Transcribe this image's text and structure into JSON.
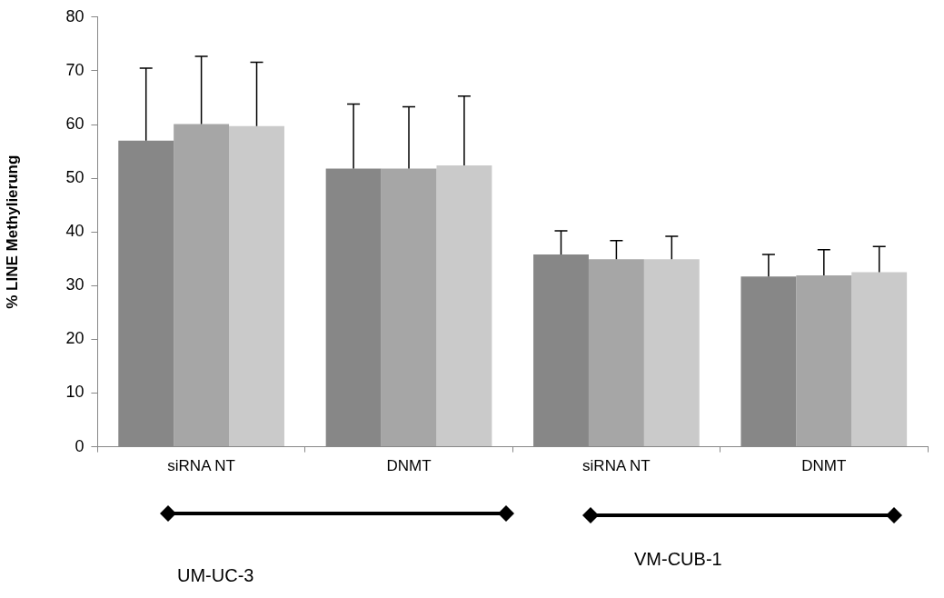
{
  "chart_data": {
    "type": "bar",
    "ylabel": "% LINE Methylierung",
    "categories": [
      "siRNA NT",
      "DNMT",
      "siRNA NT",
      "DNMT"
    ],
    "series": [
      {
        "color": "#878787",
        "values": [
          57.0,
          51.8,
          35.8,
          31.7
        ],
        "errors": [
          [
            57.0,
            70.5
          ],
          [
            51.8,
            63.8
          ],
          [
            35.8,
            40.2
          ],
          [
            31.7,
            35.8
          ]
        ]
      },
      {
        "color": "#a6a6a6",
        "values": [
          60.1,
          51.8,
          34.9,
          31.9
        ],
        "errors": [
          [
            60.1,
            72.7
          ],
          [
            51.8,
            63.3
          ],
          [
            34.9,
            38.4
          ],
          [
            31.9,
            36.7
          ]
        ]
      },
      {
        "color": "#cacaca",
        "values": [
          59.7,
          52.4,
          34.9,
          32.5
        ],
        "errors": [
          [
            59.7,
            71.6
          ],
          [
            52.4,
            65.3
          ],
          [
            34.9,
            39.2
          ],
          [
            32.5,
            37.3
          ]
        ]
      }
    ],
    "ylim": [
      0,
      80
    ],
    "yticks": [
      0,
      10,
      20,
      30,
      40,
      50,
      60,
      70,
      80
    ],
    "grid": false,
    "legend": false,
    "annotations": [
      "UM-UC-3",
      "VM-CUB-1"
    ]
  }
}
